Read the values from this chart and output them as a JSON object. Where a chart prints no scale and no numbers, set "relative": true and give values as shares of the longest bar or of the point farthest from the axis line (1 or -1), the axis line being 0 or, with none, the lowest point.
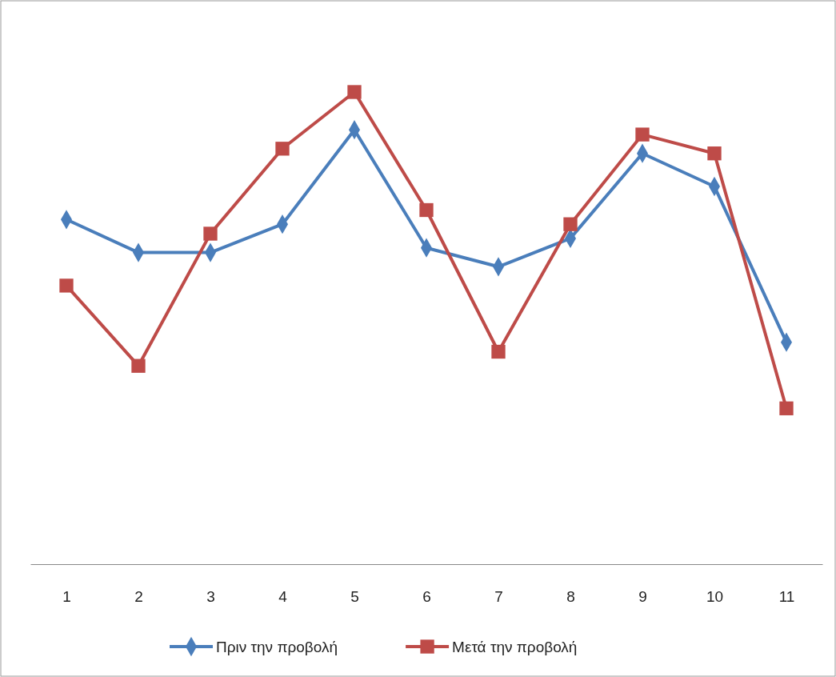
{
  "chart_data": {
    "type": "line",
    "relative": true,
    "categories": [
      "1",
      "2",
      "3",
      "4",
      "5",
      "6",
      "7",
      "8",
      "9",
      "10",
      "11"
    ],
    "legend": "bottom",
    "series": [
      {
        "name": "Πριν την προβολή",
        "color": "#4a7ebb",
        "marker": "diamond",
        "values": [
          0.73,
          0.66,
          0.66,
          0.72,
          0.92,
          0.67,
          0.63,
          0.69,
          0.87,
          0.8,
          0.47
        ]
      },
      {
        "name": "Μετά την προβολή",
        "color": "#be4b48",
        "marker": "square",
        "values": [
          0.59,
          0.42,
          0.7,
          0.88,
          1,
          0.75,
          0.45,
          0.72,
          0.91,
          0.87,
          0.33
        ]
      }
    ]
  }
}
